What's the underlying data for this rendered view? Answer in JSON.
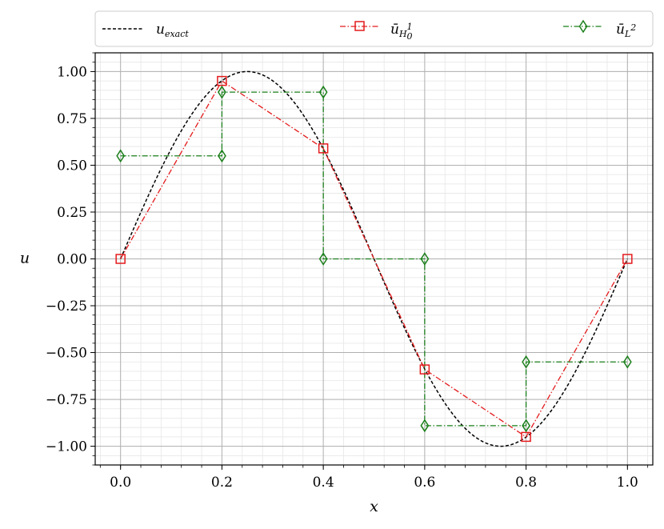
{
  "chart_data": {
    "type": "line",
    "xlabel": "x",
    "ylabel": "u",
    "xlim": [
      -0.05,
      1.05
    ],
    "ylim": [
      -1.1,
      1.1
    ],
    "xticks": [
      0.0,
      0.2,
      0.4,
      0.6,
      0.8,
      1.0
    ],
    "xtick_labels": [
      "0.0",
      "0.2",
      "0.4",
      "0.6",
      "0.8",
      "1.0"
    ],
    "yticks": [
      1.0,
      0.75,
      0.5,
      0.25,
      0.0,
      -0.25,
      -0.5,
      -0.75,
      -1.0
    ],
    "ytick_labels": [
      "1.00",
      "0.75",
      "0.50",
      "0.25",
      "0.00",
      "−0.25",
      "−0.50",
      "−0.75",
      "−1.00"
    ],
    "grid": true,
    "minor_grid": true,
    "legend_position": "top, outside",
    "exact": {
      "name": "u_exact",
      "legend_main": "u",
      "legend_sub": "exact",
      "function": "sin(2πx)",
      "x_range": [
        0,
        1
      ],
      "color": "#000000",
      "style": "dashed"
    },
    "series": [
      {
        "name": "ū_H₀¹",
        "legend_main": "ū",
        "legend_sub": "H",
        "legend_subsub": "0",
        "legend_sup": "1",
        "color": "#e41a1c",
        "style": "dashdot",
        "marker": "square",
        "x": [
          0.0,
          0.2,
          0.4,
          0.6,
          0.8,
          1.0
        ],
        "y": [
          0.0,
          0.95,
          0.59,
          -0.59,
          -0.95,
          0.0
        ]
      },
      {
        "name": "ū_L²",
        "legend_main": "ū",
        "legend_sub": "L",
        "legend_sup": "2",
        "color": "#1a7f1a",
        "style": "dashdot",
        "marker": "diamond",
        "x": [
          0.0,
          0.2,
          0.2,
          0.4,
          0.4,
          0.6,
          0.6,
          0.8,
          0.8,
          1.0
        ],
        "y": [
          0.55,
          0.55,
          0.89,
          0.89,
          0.0,
          0.0,
          -0.89,
          -0.89,
          -0.55,
          -0.55
        ]
      }
    ]
  }
}
